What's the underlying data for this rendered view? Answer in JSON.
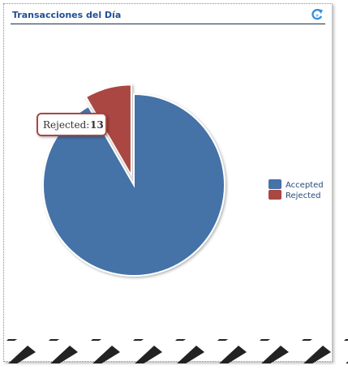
{
  "widget": {
    "title": "Transacciones del Día",
    "refresh_icon": "refresh-icon"
  },
  "chart_data": {
    "type": "pie",
    "title": "",
    "categories": [
      "Accepted",
      "Rejected"
    ],
    "values": [
      143,
      13
    ],
    "colors": [
      "#4572a7",
      "#aa4643"
    ],
    "exploded": "Rejected",
    "legend_position": "right",
    "tooltip": {
      "label": "Rejected:",
      "value": "13"
    }
  }
}
